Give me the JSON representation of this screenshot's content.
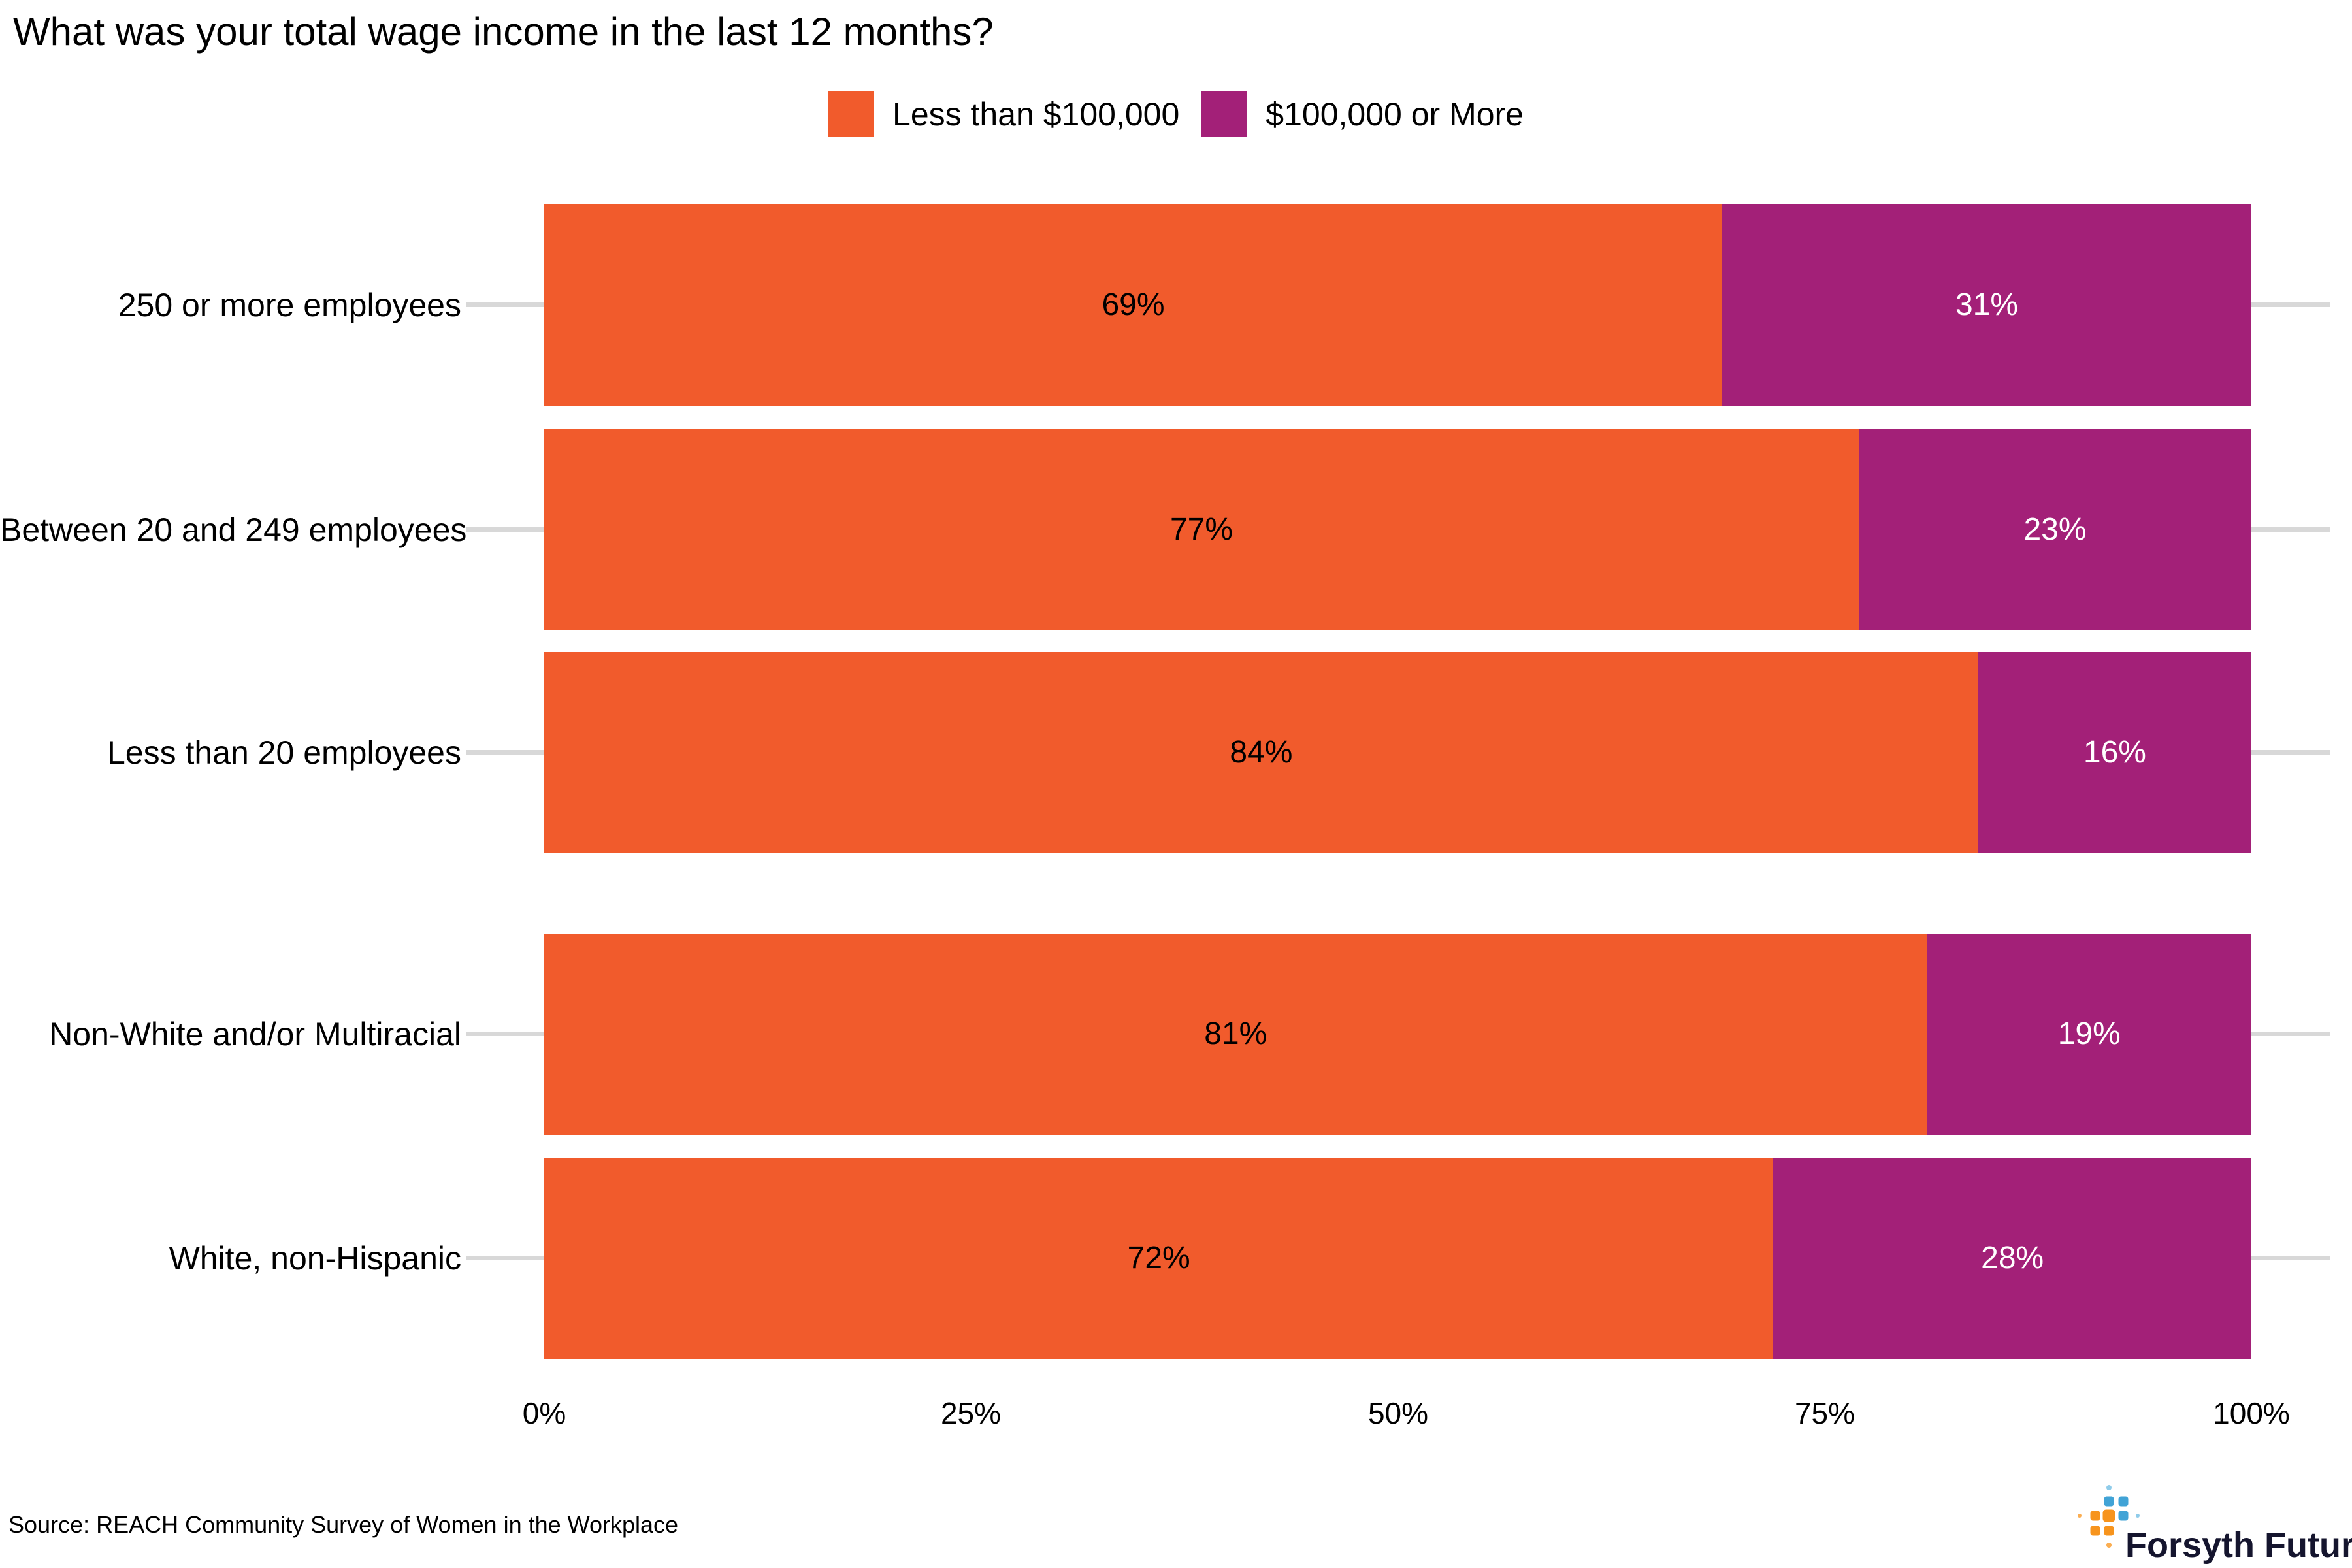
{
  "title": "What was your total wage income in the last 12 months?",
  "chart_data": {
    "type": "bar",
    "orientation": "horizontal",
    "stacked": true,
    "grid": "off",
    "legend_position": "top-center",
    "categories": [
      "250 or more employees",
      "Between 20 and 249 employees",
      "Less than 20 employees",
      "Non-White and/or Multiracial",
      "White, non-Hispanic"
    ],
    "category_groups": [
      {
        "name": "employer-size",
        "categories": [
          "250 or more employees",
          "Between 20 and 249 employees",
          "Less than 20 employees"
        ]
      },
      {
        "name": "race-ethnicity",
        "categories": [
          "Non-White and/or Multiracial",
          "White, non-Hispanic"
        ]
      }
    ],
    "series": [
      {
        "name": "Less than $100,000",
        "color": "#F15B2C",
        "label_color": "#000000",
        "values": [
          69,
          77,
          84,
          81,
          72
        ]
      },
      {
        "name": "$100,000 or More",
        "color": "#A32078",
        "label_color": "#FFFFFF",
        "values": [
          31,
          23,
          16,
          19,
          28
        ]
      }
    ],
    "value_labels": [
      [
        "69%",
        "31%"
      ],
      [
        "77%",
        "23%"
      ],
      [
        "84%",
        "16%"
      ],
      [
        "81%",
        "19%"
      ],
      [
        "72%",
        "28%"
      ]
    ],
    "x_axis": {
      "range": [
        0,
        100
      ],
      "ticks": [
        "0%",
        "25%",
        "50%",
        "75%",
        "100%"
      ]
    },
    "tick_color": "#D8D8D8"
  },
  "source": "Source: REACH Community Survey of Women in the Workplace",
  "logo": {
    "text": "Forsyth Futures",
    "colors": {
      "blue": "#41A3D6",
      "light_blue": "#90CCEA",
      "orange": "#F7941D",
      "light_orange": "#FBAE52",
      "text": "#15152E"
    }
  }
}
